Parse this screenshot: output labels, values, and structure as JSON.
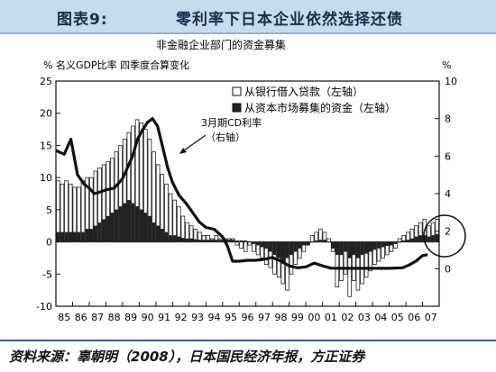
{
  "header": {
    "figure_label": "图表9:",
    "figure_title": "零利率下日本企业依然选择还债"
  },
  "footer": {
    "source": "资料来源：辜朝明（2008），日本国民经济年报，方正证券"
  },
  "chart_data": {
    "type": "bar",
    "title": "非金融企业部门的资金募集",
    "ylabel_left": "% 名义GDP比率  四季度合算变化",
    "ylabel_right": "%",
    "ylim_left": [
      -10,
      25
    ],
    "ylim_right": [
      -2,
      10
    ],
    "yticks_left": [
      "25",
      "20",
      "15",
      "10",
      "5",
      "0",
      "-5",
      "-10"
    ],
    "yticks_right": [
      "10",
      "8",
      "6",
      "4",
      "2",
      "0"
    ],
    "year_ticks": [
      "85",
      "86",
      "87",
      "88",
      "89",
      "90",
      "91",
      "92",
      "93",
      "94",
      "95",
      "96",
      "97",
      "98",
      "99",
      "00",
      "01",
      "02",
      "03",
      "04",
      "05",
      "06",
      "07"
    ],
    "legend": [
      {
        "label": "从银行借入贷款（左轴）",
        "color": "#ffffff"
      },
      {
        "label": "从资本市场募集的资金（左轴）",
        "color": "#222222"
      }
    ],
    "annotation": {
      "line1": "3月期CD利率",
      "line2": "（右轴）"
    },
    "series": [
      {
        "name": "从银行借入贷款（左轴）",
        "per_year": [
          [
            9.5,
            9.0,
            9.5,
            9.0
          ],
          [
            8.5,
            8.5,
            9.5,
            10.0
          ],
          [
            10.0,
            11.0,
            11.5,
            12.0
          ],
          [
            12.5,
            13.0,
            14.0,
            15.0
          ],
          [
            16.0,
            17.0,
            18.0,
            19.0
          ],
          [
            18.5,
            17.5,
            16.0,
            14.0
          ],
          [
            12.0,
            10.5,
            9.0,
            7.5
          ],
          [
            6.5,
            5.5,
            4.0,
            3.0
          ],
          [
            2.5,
            2.0,
            1.5,
            1.0
          ],
          [
            1.0,
            0.5,
            1.0,
            0.5
          ],
          [
            0.5,
            0.5,
            0.5,
            -0.5
          ],
          [
            -1.0,
            -1.5,
            -0.5,
            -1.5
          ],
          [
            -2.0,
            -2.5,
            -3.5,
            -4.0
          ],
          [
            -5.0,
            -5.5,
            -6.5,
            -7.5
          ],
          [
            -5.0,
            -3.5,
            -2.5,
            -1.5
          ],
          [
            -0.5,
            1.0,
            1.5,
            2.0
          ],
          [
            1.5,
            0.5,
            -1.5,
            -7.0
          ],
          [
            -6.0,
            -5.0,
            -8.5,
            -6.0
          ],
          [
            -7.5,
            -6.5,
            -5.5,
            -4.5
          ],
          [
            -3.5,
            -3.0,
            -2.5,
            -2.0
          ],
          [
            -1.5,
            -1.0,
            0.5,
            1.0
          ],
          [
            1.5,
            2.0,
            2.5,
            3.0
          ],
          [
            3.5,
            2.5,
            3.0,
            3.5
          ]
        ]
      },
      {
        "name": "从资本市场募集的资金（左轴）",
        "per_year": [
          [
            1.5,
            1.5,
            1.5,
            1.5
          ],
          [
            1.5,
            1.5,
            1.5,
            2.0
          ],
          [
            2.0,
            2.5,
            3.0,
            3.5
          ],
          [
            4.0,
            4.5,
            5.0,
            5.5
          ],
          [
            6.0,
            6.5,
            6.0,
            5.5
          ],
          [
            5.0,
            4.5,
            4.0,
            3.0
          ],
          [
            2.5,
            2.0,
            1.5,
            1.0
          ],
          [
            1.0,
            0.8,
            0.6,
            0.5
          ],
          [
            0.5,
            0.4,
            0.3,
            0.3
          ],
          [
            0.3,
            0.3,
            0.3,
            0.3
          ],
          [
            0.3,
            0.3,
            0.3,
            0.2
          ],
          [
            0.2,
            0.2,
            0.0,
            -0.3
          ],
          [
            -0.5,
            -0.8,
            -1.0,
            -1.5
          ],
          [
            -2.0,
            -2.5,
            -3.0,
            -2.5
          ],
          [
            -2.0,
            -1.5,
            -1.0,
            -0.5
          ],
          [
            -0.5,
            0.0,
            0.2,
            0.3
          ],
          [
            0.3,
            0.0,
            -1.0,
            -2.0
          ],
          [
            -2.0,
            -1.5,
            -2.5,
            -2.0
          ],
          [
            -2.5,
            -2.0,
            -1.8,
            -1.5
          ],
          [
            -1.2,
            -1.0,
            -0.8,
            -0.6
          ],
          [
            -0.5,
            -0.3,
            0.0,
            0.2
          ],
          [
            0.3,
            0.5,
            0.8,
            1.0
          ],
          [
            1.0,
            0.8,
            1.0,
            1.2
          ]
        ]
      }
    ],
    "line_series": {
      "name": "3月期CD利率（右轴）",
      "axis": "right",
      "points": [
        [
          85.0,
          6.3
        ],
        [
          85.5,
          6.1
        ],
        [
          85.9,
          6.9
        ],
        [
          86.3,
          5.0
        ],
        [
          86.7,
          4.5
        ],
        [
          87.0,
          4.3
        ],
        [
          87.3,
          4.0
        ],
        [
          87.7,
          4.1
        ],
        [
          88.0,
          4.2
        ],
        [
          88.5,
          4.3
        ],
        [
          89.0,
          4.8
        ],
        [
          89.3,
          5.4
        ],
        [
          89.6,
          6.0
        ],
        [
          89.9,
          6.9
        ],
        [
          90.2,
          7.4
        ],
        [
          90.5,
          7.8
        ],
        [
          90.8,
          8.0
        ],
        [
          91.1,
          7.6
        ],
        [
          91.4,
          6.5
        ],
        [
          91.7,
          5.4
        ],
        [
          92.0,
          4.6
        ],
        [
          92.4,
          3.9
        ],
        [
          92.8,
          3.5
        ],
        [
          93.2,
          3.0
        ],
        [
          93.6,
          2.5
        ],
        [
          94.0,
          2.2
        ],
        [
          94.5,
          2.1
        ],
        [
          95.0,
          1.7
        ],
        [
          95.3,
          1.2
        ],
        [
          95.6,
          0.4
        ],
        [
          96.0,
          0.4
        ],
        [
          96.5,
          0.45
        ],
        [
          97.0,
          0.45
        ],
        [
          97.5,
          0.5
        ],
        [
          98.0,
          0.6
        ],
        [
          98.5,
          0.4
        ],
        [
          99.0,
          0.15
        ],
        [
          99.5,
          0.05
        ],
        [
          100.0,
          0.1
        ],
        [
          100.5,
          0.3
        ],
        [
          101.0,
          0.15
        ],
        [
          101.5,
          0.03
        ],
        [
          102.0,
          0.02
        ],
        [
          103.0,
          0.02
        ],
        [
          104.0,
          0.02
        ],
        [
          105.0,
          0.02
        ],
        [
          105.8,
          0.05
        ],
        [
          106.2,
          0.2
        ],
        [
          106.6,
          0.4
        ],
        [
          107.0,
          0.7
        ],
        [
          107.3,
          0.75
        ]
      ]
    }
  }
}
